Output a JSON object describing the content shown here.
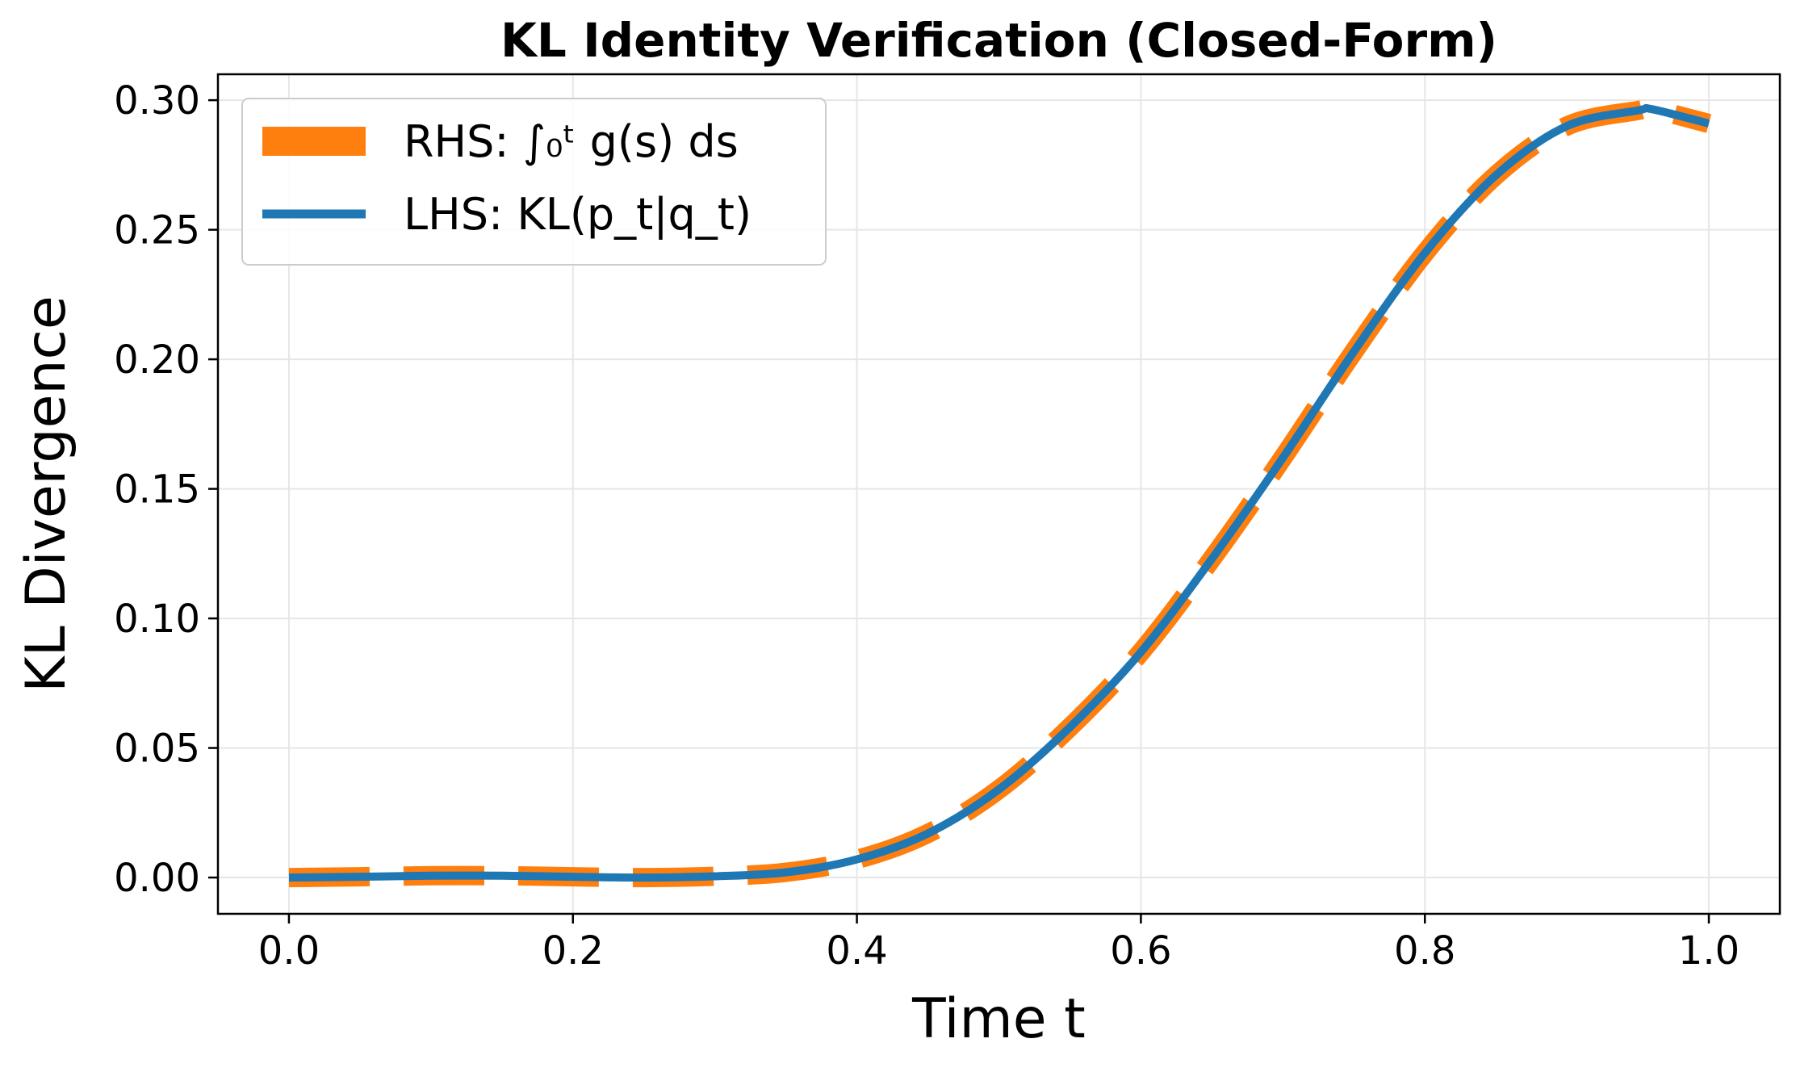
{
  "chart_data": {
    "type": "line",
    "title": "KL Identity Verification (Closed-Form)",
    "xlabel": "Time t",
    "ylabel": "KL Divergence",
    "xlim": [
      -0.05,
      1.05
    ],
    "ylim": [
      -0.014,
      0.31
    ],
    "xticks": [
      0.0,
      0.2,
      0.4,
      0.6,
      0.8,
      1.0
    ],
    "xtick_labels": [
      "0.0",
      "0.2",
      "0.4",
      "0.6",
      "0.8",
      "1.0"
    ],
    "yticks": [
      0.0,
      0.05,
      0.1,
      0.15,
      0.2,
      0.25,
      0.3
    ],
    "ytick_labels": [
      "0.00",
      "0.05",
      "0.10",
      "0.15",
      "0.20",
      "0.25",
      "0.30"
    ],
    "grid": true,
    "legend_position": "top-left",
    "series": [
      {
        "name": "RHS: ∫₀ᵗ g(s) ds",
        "color": "#ff7f0e",
        "style": "dashed",
        "x": [
          0.0,
          0.05,
          0.1,
          0.15,
          0.2,
          0.25,
          0.3,
          0.35,
          0.4,
          0.45,
          0.5,
          0.55,
          0.6,
          0.65,
          0.7,
          0.75,
          0.8,
          0.85,
          0.9,
          0.95,
          0.96,
          1.0
        ],
        "values": [
          0.0,
          0.0003,
          0.0007,
          0.0007,
          0.0003,
          0.0,
          0.0005,
          0.002,
          0.007,
          0.017,
          0.034,
          0.058,
          0.087,
          0.123,
          0.162,
          0.203,
          0.241,
          0.271,
          0.29,
          0.296,
          0.2965,
          0.291
        ]
      },
      {
        "name": "LHS: KL(p_t|q_t)",
        "color": "#1f77b4",
        "style": "solid",
        "x": [
          0.0,
          0.05,
          0.1,
          0.15,
          0.2,
          0.25,
          0.3,
          0.35,
          0.4,
          0.45,
          0.5,
          0.55,
          0.6,
          0.65,
          0.7,
          0.75,
          0.8,
          0.85,
          0.9,
          0.95,
          0.96,
          1.0
        ],
        "values": [
          0.0,
          0.0003,
          0.0007,
          0.0007,
          0.0003,
          0.0,
          0.0005,
          0.002,
          0.007,
          0.017,
          0.034,
          0.058,
          0.087,
          0.123,
          0.162,
          0.203,
          0.241,
          0.271,
          0.29,
          0.296,
          0.2965,
          0.291
        ]
      }
    ]
  }
}
